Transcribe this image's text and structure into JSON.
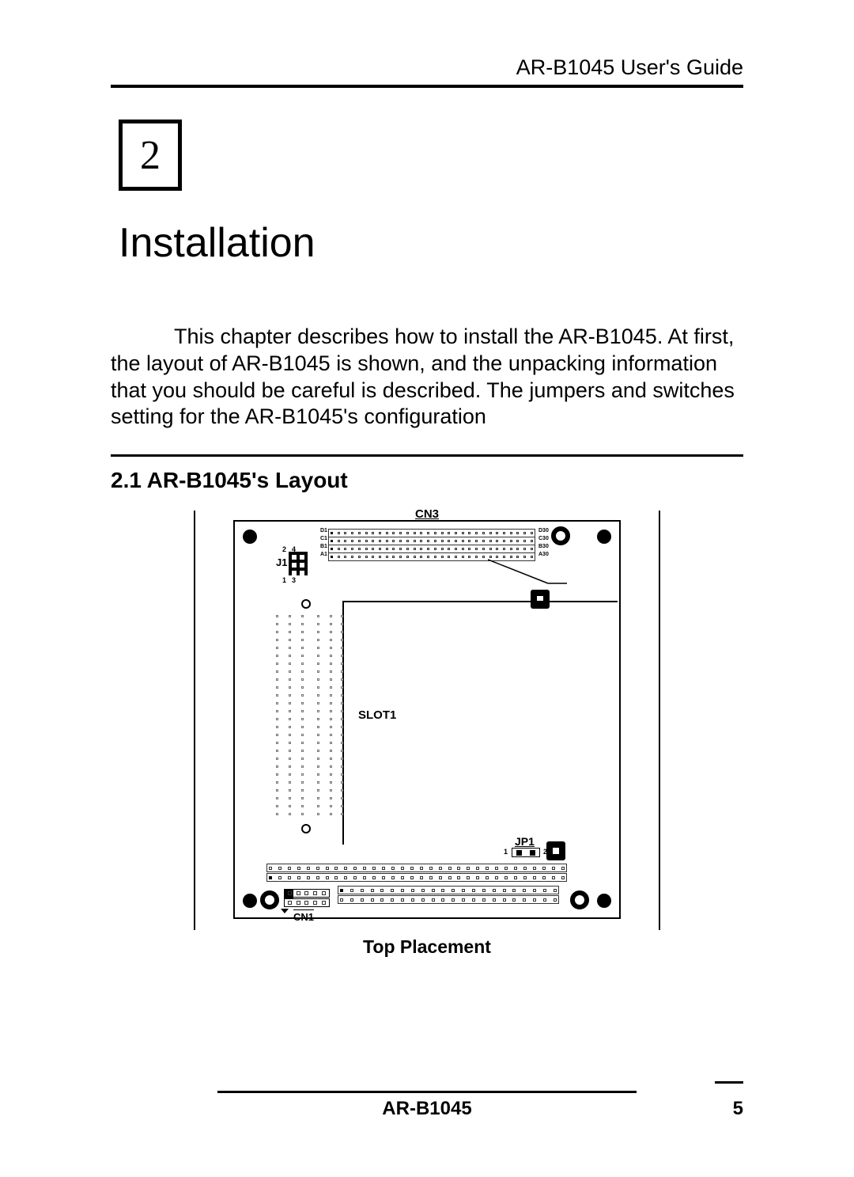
{
  "header": {
    "title": "AR-B1045 User's Guide"
  },
  "chapter": {
    "number": "2",
    "title": "Installation"
  },
  "body": {
    "paragraph": "This chapter describes how to install the AR-B1045. At first, the layout of AR-B1045 is shown, and the unpacking information that you should be careful is described.  The jumpers and switches setting for the AR-B1045's configuration"
  },
  "section": {
    "title": "2.1 AR-B1045's Layout"
  },
  "diagram": {
    "caption": "Top Placement",
    "labels": {
      "cn3": "CN3",
      "cn1": "CN1",
      "jp1": "JP1",
      "j1": "J1",
      "slot1": "SLOT1",
      "d1": "D1",
      "c1": "C1",
      "b1": "B1",
      "a1": "A1",
      "d30": "D30",
      "c30": "C30",
      "b30": "B30",
      "a30": "A30",
      "n1": "1",
      "n2": "2",
      "n3": "3",
      "n4": "4",
      "jp1_left": "1",
      "jp1_right": "2"
    },
    "colors": {
      "line": "#000000",
      "bg": "#ffffff"
    }
  },
  "footer": {
    "model": "AR-B1045",
    "page": "5"
  }
}
